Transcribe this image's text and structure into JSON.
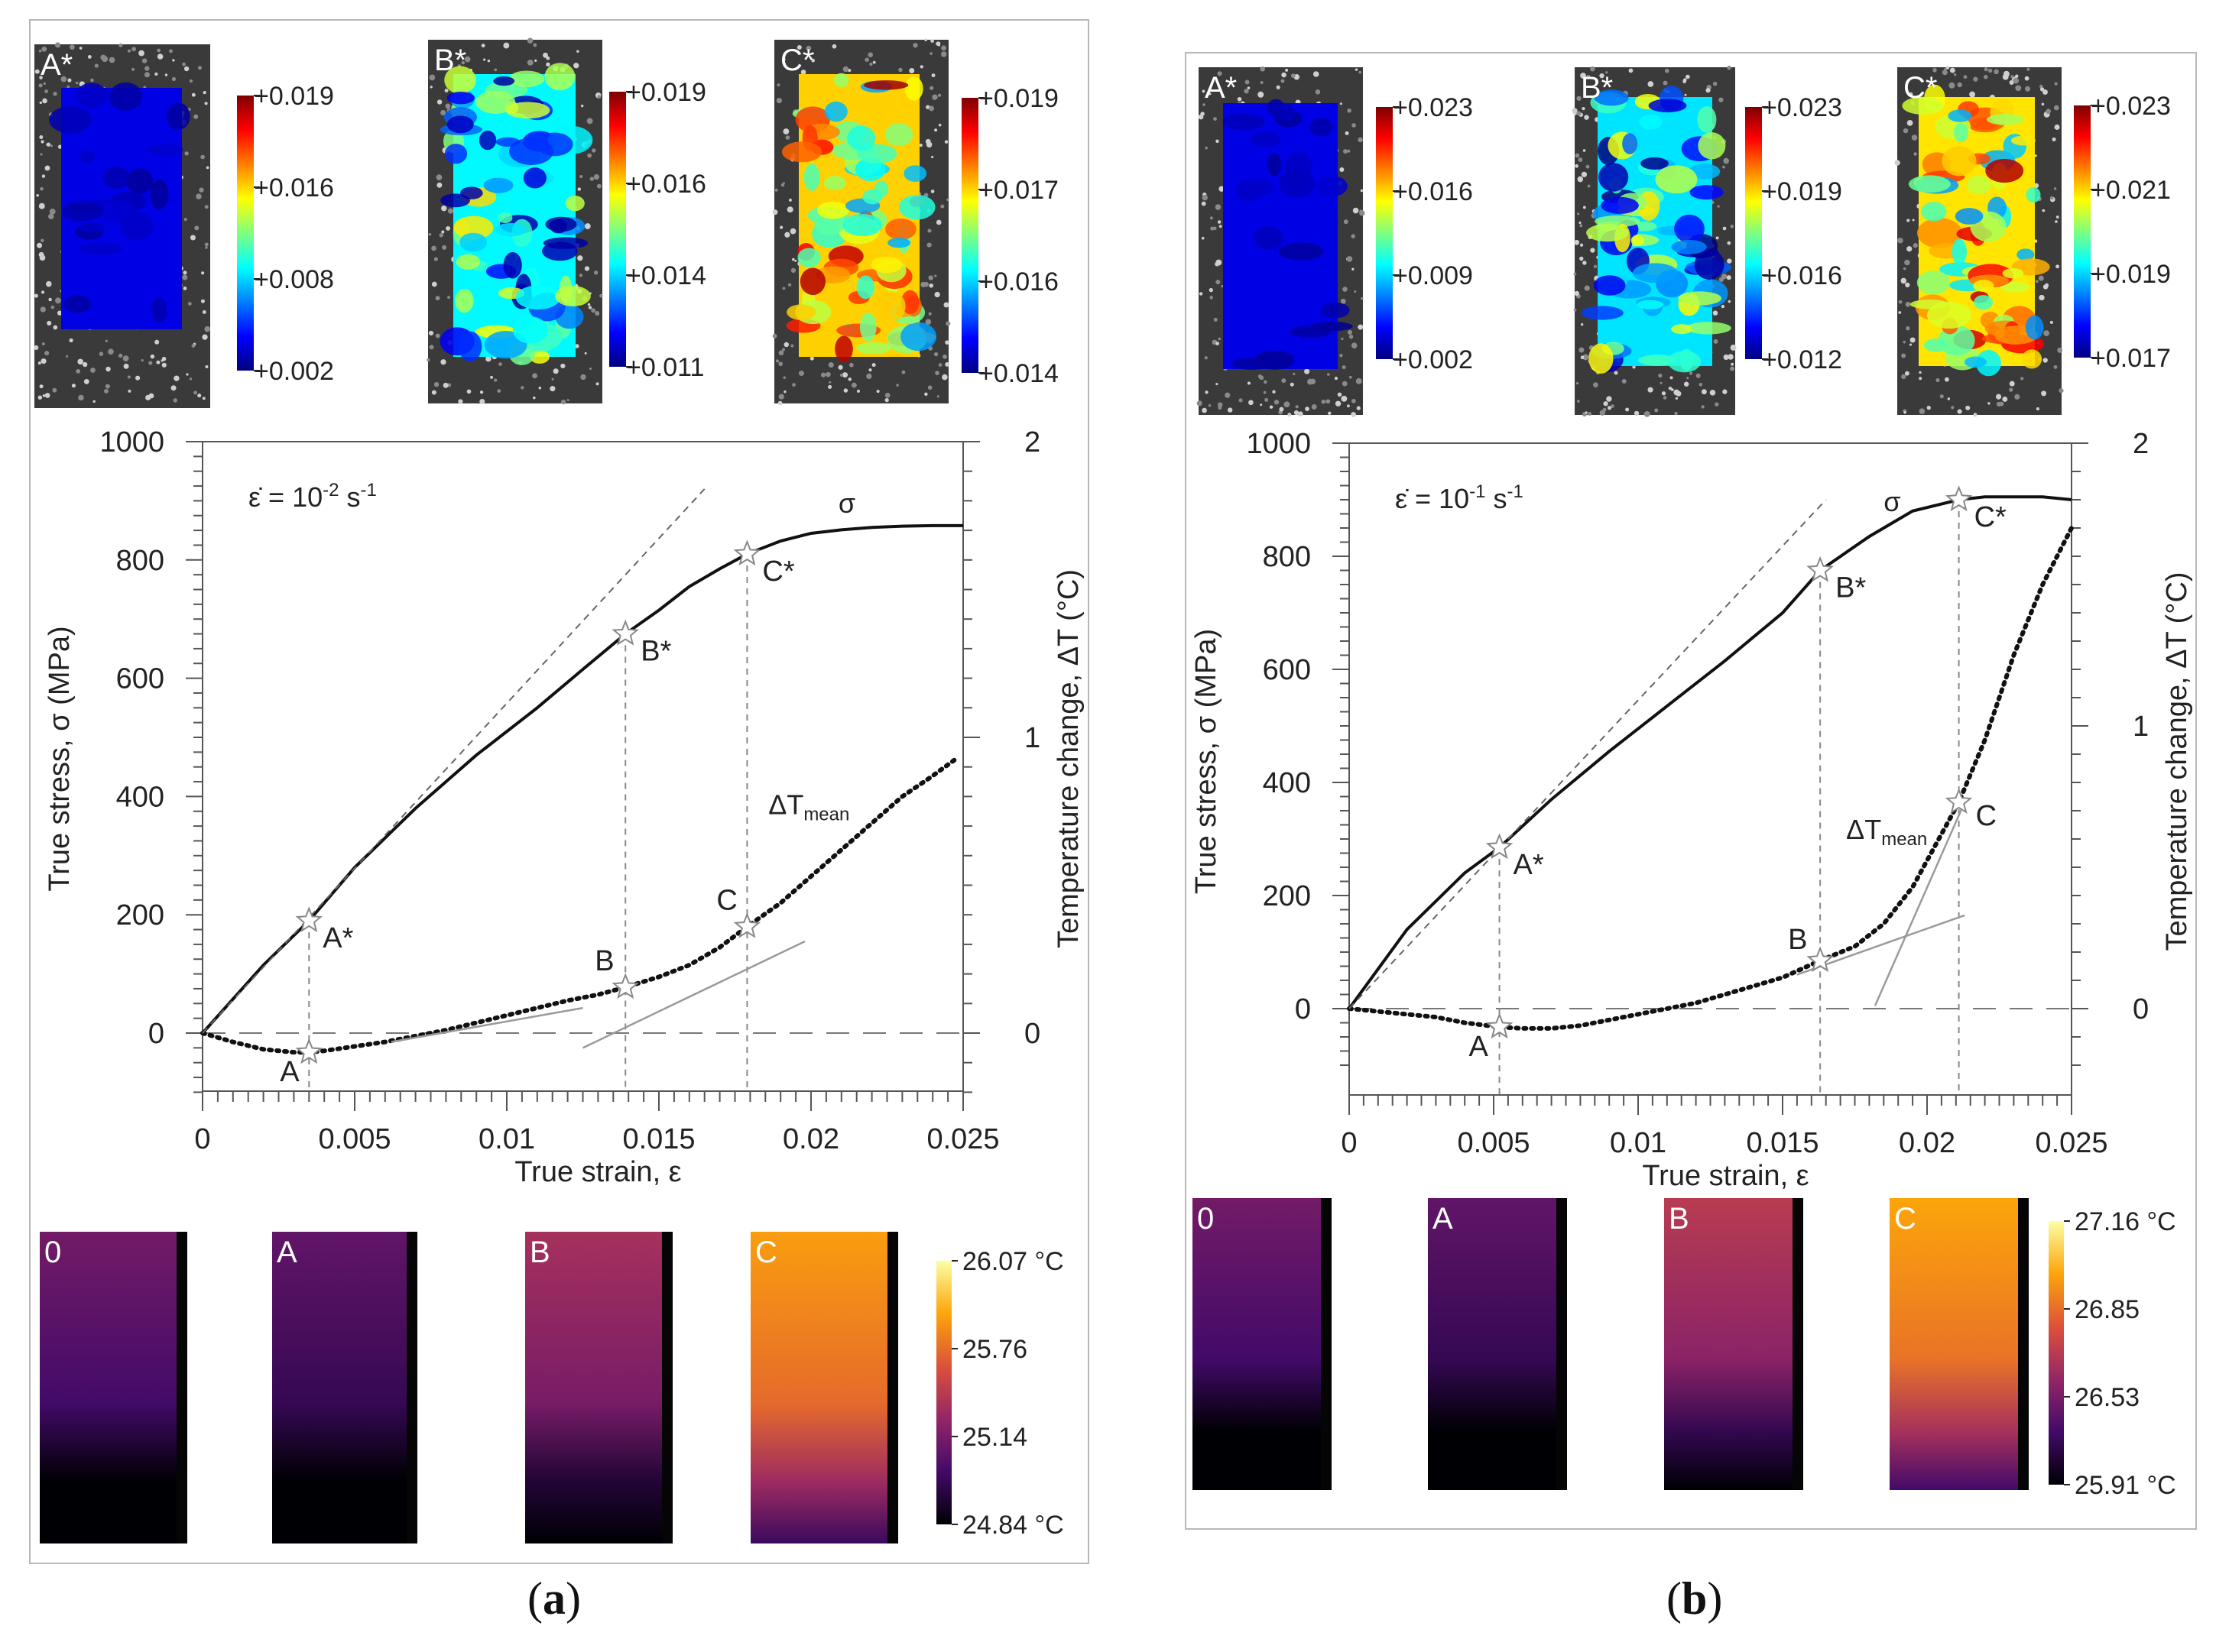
{
  "figure": {
    "captions": [
      {
        "open": "(",
        "letter": "a",
        "close": ")"
      },
      {
        "open": "(",
        "letter": "b",
        "close": ")"
      }
    ]
  },
  "colormaps": {
    "jet": [
      "#00007f",
      "#0000ff",
      "#007fff",
      "#00ffff",
      "#7fff7f",
      "#ffff00",
      "#ff7f00",
      "#ff0000",
      "#7f0000"
    ],
    "inferno": [
      "#000004",
      "#420a68",
      "#932667",
      "#dd513a",
      "#fca50a",
      "#fcffa4"
    ]
  },
  "panels": [
    {
      "id": "a",
      "dic_maps": [
        {
          "label": "A*",
          "scale_ticks": [
            "+0.019",
            "+0.016",
            "+0.008",
            "+0.002"
          ],
          "level": 0.05
        },
        {
          "label": "B*",
          "scale_ticks": [
            "+0.019",
            "+0.016",
            "+0.014",
            "+0.011"
          ],
          "level": 0.32
        },
        {
          "label": "C*",
          "scale_ticks": [
            "+0.019",
            "+0.017",
            "+0.016",
            "+0.014"
          ],
          "level": 0.62
        }
      ],
      "thermal_maps": [
        {
          "label": "0",
          "level": 0.32
        },
        {
          "label": "A",
          "level": 0.28
        },
        {
          "label": "B",
          "level": 0.45
        },
        {
          "label": "C",
          "level": 0.78
        }
      ],
      "thermal_scale": {
        "max": "26.07 °C",
        "t2": "25.76",
        "t3": "25.14",
        "min": "24.84 °C"
      }
    },
    {
      "id": "b",
      "dic_maps": [
        {
          "label": "A*",
          "scale_ticks": [
            "+0.023",
            "+0.016",
            "+0.009",
            "+0.002"
          ],
          "level": 0.05
        },
        {
          "label": "B*",
          "scale_ticks": [
            "+0.023",
            "+0.019",
            "+0.016",
            "+0.012"
          ],
          "level": 0.3
        },
        {
          "label": "C*",
          "scale_ticks": [
            "+0.023",
            "+0.021",
            "+0.019",
            "+0.017"
          ],
          "level": 0.6
        }
      ],
      "thermal_maps": [
        {
          "label": "0",
          "level": 0.32
        },
        {
          "label": "A",
          "level": 0.28
        },
        {
          "label": "B",
          "level": 0.5
        },
        {
          "label": "C",
          "level": 0.8
        }
      ],
      "thermal_scale": {
        "max": "27.16 °C",
        "t2": "26.85",
        "t3": "26.53",
        "min": "25.91 °C"
      }
    }
  ],
  "chart_data": [
    {
      "type": "line",
      "xlabel": "True strain, ε",
      "ylabel": "True stress, σ  (MPa)",
      "y2label": "Temperature change, ΔT  (°C)",
      "strain_rate_label": {
        "prefix": "ε̇ = 10",
        "exp": "-2",
        "unit": " s",
        "unit_exp": "-1"
      },
      "xlim": [
        0,
        0.025
      ],
      "ylim": [
        -100,
        1000
      ],
      "y2lim": [
        -0.2,
        2
      ],
      "xticks": [
        "0",
        "0.005",
        "0.01",
        "0.015",
        "0.02",
        "0.025"
      ],
      "yticks": [
        "0",
        "200",
        "400",
        "600",
        "800",
        "1000"
      ],
      "y2ticks": [
        "0",
        "1",
        "2"
      ],
      "series": [
        {
          "name": "σ",
          "axis": "left",
          "style": "solid",
          "x": [
            0,
            0.002,
            0.0035,
            0.005,
            0.007,
            0.009,
            0.011,
            0.0125,
            0.0139,
            0.015,
            0.016,
            0.017,
            0.0179,
            0.019,
            0.02,
            0.021,
            0.022,
            0.023,
            0.024,
            0.025
          ],
          "y": [
            0,
            115,
            190,
            280,
            380,
            470,
            550,
            615,
            675,
            715,
            755,
            785,
            810,
            832,
            845,
            851,
            855,
            857,
            858,
            858
          ]
        },
        {
          "name": "ΔT",
          "name_sub": "mean",
          "axis": "right",
          "style": "dotted",
          "x": [
            0,
            0.001,
            0.002,
            0.003,
            0.0035,
            0.004,
            0.005,
            0.006,
            0.007,
            0.008,
            0.009,
            0.01,
            0.011,
            0.012,
            0.013,
            0.0139,
            0.015,
            0.016,
            0.017,
            0.0179,
            0.019,
            0.02,
            0.021,
            0.022,
            0.023,
            0.024,
            0.0248
          ],
          "y": [
            0,
            -0.03,
            -0.055,
            -0.065,
            -0.065,
            -0.06,
            -0.045,
            -0.03,
            -0.01,
            0.01,
            0.035,
            0.06,
            0.085,
            0.11,
            0.13,
            0.155,
            0.19,
            0.23,
            0.29,
            0.36,
            0.44,
            0.53,
            0.62,
            0.71,
            0.8,
            0.87,
            0.93
          ]
        },
        {
          "name": "elastic reference",
          "axis": "left",
          "style": "dashed",
          "x": [
            0,
            0.0165
          ],
          "y": [
            0,
            920
          ]
        },
        {
          "name": "tangent 1",
          "axis": "right",
          "style": "thin",
          "x": [
            0.0062,
            0.0125
          ],
          "y": [
            -0.03,
            0.085
          ]
        },
        {
          "name": "tangent 2",
          "axis": "right",
          "style": "thin",
          "x": [
            0.0125,
            0.0198
          ],
          "y": [
            -0.05,
            0.31
          ]
        }
      ],
      "annotations": [
        {
          "label": "A*",
          "x": 0.0035,
          "y": 190,
          "axis": "left",
          "dx": 18,
          "dy": 35
        },
        {
          "label": "B*",
          "x": 0.0139,
          "y": 675,
          "axis": "left",
          "dx": 20,
          "dy": 35
        },
        {
          "label": "C*",
          "x": 0.0179,
          "y": 810,
          "axis": "left",
          "dx": 20,
          "dy": 35
        },
        {
          "label": "A",
          "x": 0.0035,
          "y": -0.065,
          "axis": "right",
          "dx": -38,
          "dy": 38
        },
        {
          "label": "B",
          "x": 0.0139,
          "y": 0.155,
          "axis": "right",
          "dx": -40,
          "dy": -22
        },
        {
          "label": "C",
          "x": 0.0179,
          "y": 0.36,
          "axis": "right",
          "dx": -40,
          "dy": -22
        }
      ],
      "curve_labels": [
        {
          "text": "σ",
          "x": 0.0209,
          "y": 880,
          "axis": "left"
        },
        {
          "text": "ΔT",
          "sub": "mean",
          "x": 0.0186,
          "y": 0.74,
          "axis": "right"
        }
      ],
      "verticals": [
        0.0035,
        0.0139,
        0.0179
      ]
    },
    {
      "type": "line",
      "xlabel": "True strain, ε",
      "ylabel": "True stress, σ  (MPa)",
      "y2label": "Temperature change, ΔT  (°C)",
      "strain_rate_label": {
        "prefix": "ε̇ = 10",
        "exp": "-1",
        "unit": " s",
        "unit_exp": "-1"
      },
      "xlim": [
        0,
        0.025
      ],
      "ylim": [
        -100,
        1000
      ],
      "y2lim": [
        -0.2,
        2
      ],
      "xticks": [
        "0",
        "0.005",
        "0.01",
        "0.015",
        "0.02",
        "0.025"
      ],
      "yticks": [
        "0",
        "200",
        "400",
        "600",
        "800",
        "1000"
      ],
      "y2ticks": [
        "0",
        "1",
        "2"
      ],
      "series": [
        {
          "name": "σ",
          "axis": "left",
          "style": "solid",
          "x": [
            0,
            0.002,
            0.004,
            0.0052,
            0.007,
            0.009,
            0.011,
            0.013,
            0.015,
            0.0163,
            0.018,
            0.0195,
            0.0211,
            0.022,
            0.023,
            0.024,
            0.025
          ],
          "y": [
            0,
            140,
            240,
            285,
            370,
            455,
            535,
            615,
            700,
            775,
            835,
            880,
            900,
            905,
            905,
            905,
            900
          ]
        },
        {
          "name": "ΔT",
          "name_sub": "mean",
          "axis": "right",
          "style": "dotted",
          "x": [
            0,
            0.001,
            0.002,
            0.003,
            0.004,
            0.0052,
            0.006,
            0.007,
            0.008,
            0.009,
            0.01,
            0.011,
            0.012,
            0.013,
            0.014,
            0.015,
            0.0163,
            0.0175,
            0.0185,
            0.0195,
            0.0211,
            0.022,
            0.023,
            0.024,
            0.025
          ],
          "y": [
            0,
            -0.01,
            -0.02,
            -0.03,
            -0.05,
            -0.065,
            -0.07,
            -0.07,
            -0.06,
            -0.04,
            -0.02,
            0,
            0.02,
            0.05,
            0.08,
            0.11,
            0.17,
            0.22,
            0.3,
            0.43,
            0.73,
            0.95,
            1.25,
            1.5,
            1.7
          ]
        },
        {
          "name": "elastic reference",
          "axis": "left",
          "style": "dashed",
          "x": [
            0,
            0.0165
          ],
          "y": [
            0,
            900
          ]
        },
        {
          "name": "tangent 1",
          "axis": "right",
          "style": "thin",
          "x": [
            0.0155,
            0.0213
          ],
          "y": [
            0.12,
            0.33
          ]
        },
        {
          "name": "tangent 2",
          "axis": "right",
          "style": "thin",
          "x": [
            0.0182,
            0.0213
          ],
          "y": [
            0.01,
            0.73
          ]
        }
      ],
      "annotations": [
        {
          "label": "A*",
          "x": 0.0052,
          "y": 285,
          "axis": "left",
          "dx": 18,
          "dy": 35
        },
        {
          "label": "B*",
          "x": 0.0163,
          "y": 775,
          "axis": "left",
          "dx": 20,
          "dy": 35
        },
        {
          "label": "C*",
          "x": 0.0211,
          "y": 900,
          "axis": "left",
          "dx": 20,
          "dy": 35
        },
        {
          "label": "A",
          "x": 0.0052,
          "y": -0.065,
          "axis": "right",
          "dx": -40,
          "dy": 38
        },
        {
          "label": "B",
          "x": 0.0163,
          "y": 0.17,
          "axis": "right",
          "dx": -42,
          "dy": -15
        },
        {
          "label": "C",
          "x": 0.0211,
          "y": 0.73,
          "axis": "right",
          "dx": 22,
          "dy": 30
        }
      ],
      "curve_labels": [
        {
          "text": "σ",
          "x": 0.0185,
          "y": 880,
          "axis": "left"
        },
        {
          "text": "ΔT",
          "sub": "mean",
          "x": 0.0172,
          "y": 0.6,
          "axis": "right"
        }
      ],
      "verticals": [
        0.0052,
        0.0163,
        0.0211
      ]
    }
  ]
}
